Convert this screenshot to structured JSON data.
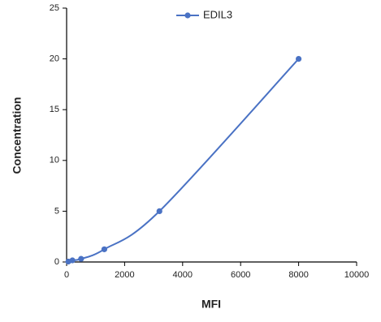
{
  "chart_data": {
    "type": "line",
    "x_label": "MFI",
    "y_label": "Concentration",
    "x": [
      60,
      200,
      500,
      1300,
      3200,
      8000
    ],
    "series": [
      {
        "name": "EDIL3",
        "color": "#4a72c4",
        "values": [
          0.04,
          0.16,
          0.31,
          1.25,
          5,
          20
        ]
      }
    ],
    "xlim": [
      0,
      10000
    ],
    "xticks": [
      0,
      2000,
      4000,
      6000,
      8000,
      10000
    ],
    "ylim": [
      0,
      25
    ],
    "yticks": [
      0,
      5,
      10,
      15,
      20,
      25
    ],
    "grid": false,
    "legend": "top"
  }
}
